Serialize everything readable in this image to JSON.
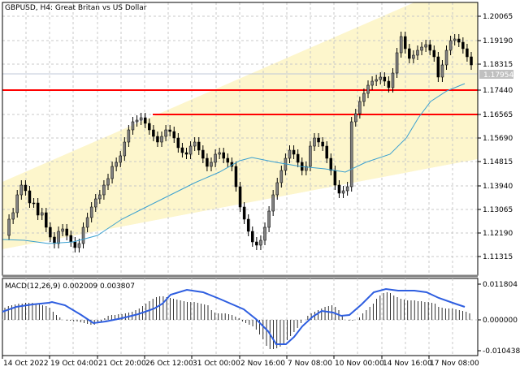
{
  "header": {
    "title": "GBPUSD, H4:  Great Britan vs US Dollar"
  },
  "macd_label": "MACD(12,26,9) 0.002009 0.003807",
  "current_price_tag": "1.17954",
  "colors": {
    "channel_fill": "#fdf6cc",
    "bull_candle": "#808080",
    "bear_candle": "#000000",
    "ma_line": "#3aa0d0",
    "horizontal_lines": "#ff0000",
    "macd_signal": "#2e5ee0",
    "grid": "#c8c8c8"
  },
  "price_axis": [
    "1.20065",
    "1.19190",
    "1.18315",
    "1.17440",
    "1.16565",
    "1.15690",
    "1.14815",
    "1.13940",
    "1.13065",
    "1.12190",
    "1.11315"
  ],
  "macd_axis": [
    "0.011804",
    "0.000000",
    "-0.010438"
  ],
  "time_axis": [
    "14 Oct 2022",
    "19 Oct 04:00",
    "21 Oct 20:00",
    "26 Oct 12:00",
    "31 Oct 00:00",
    "2 Nov 16:00",
    "7 Nov 08:00",
    "10 Nov 00:00",
    "14 Nov 16:00",
    "17 Nov 08:00"
  ],
  "chart_data": {
    "type": "candlestick",
    "title": "GBPUSD, H4: Great Britan vs US Dollar",
    "xlabel": "",
    "ylabel": "",
    "ylim": [
      1.1085,
      1.208
    ],
    "x": [
      "14 Oct 2022",
      "19 Oct 04:00",
      "21 Oct 20:00",
      "26 Oct 12:00",
      "31 Oct 00:00",
      "2 Nov 16:00",
      "7 Nov 08:00",
      "10 Nov 00:00",
      "14 Nov 16:00",
      "17 Nov 08:00"
    ],
    "approx_close_at_ticks": [
      1.123,
      1.124,
      1.127,
      1.164,
      1.153,
      1.114,
      1.142,
      1.136,
      1.195,
      1.187
    ],
    "last_price": 1.17954,
    "horizontal_levels": [
      1.1744,
      1.16565
    ],
    "moving_average_approx": [
      1.121,
      1.1205,
      1.128,
      1.141,
      1.151,
      1.153,
      1.149,
      1.148,
      1.162,
      1.176
    ],
    "channel": {
      "upper_start": 1.139,
      "upper_end": 1.208,
      "lower_start": 1.115,
      "lower_end": 1.152
    },
    "grid": true,
    "indicator": {
      "name": "MACD(12,26,9)",
      "macd": 0.002009,
      "signal": 0.003807,
      "ylim": [
        -0.010438,
        0.011804
      ]
    }
  }
}
